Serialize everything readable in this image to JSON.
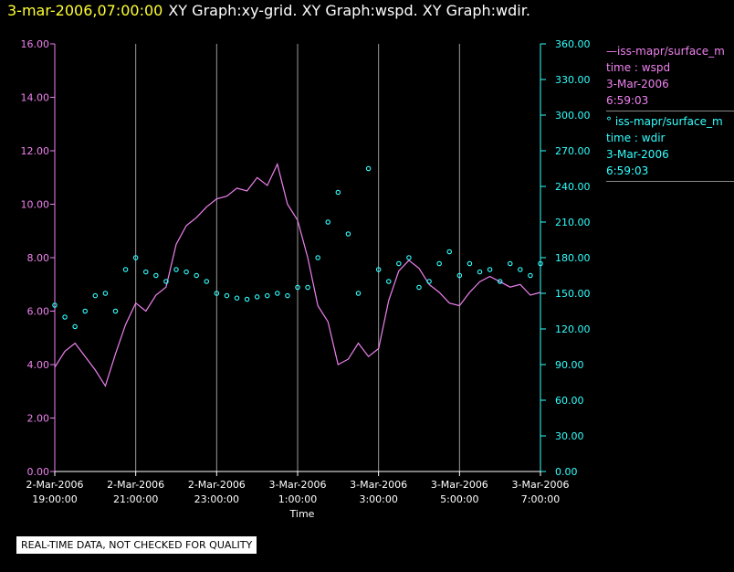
{
  "header": {
    "timestamp": "3-mar-2006,07:00:00",
    "title": "XY Graph:xy-grid.  XY Graph:wspd.  XY Graph:wdir."
  },
  "legend": [
    {
      "marker": "—",
      "name": "iss-mapr/surface_m",
      "var": "time : wspd",
      "date": "3-Mar-2006",
      "time": "6:59:03",
      "color": "#ee82ee"
    },
    {
      "marker": "°",
      "name": "iss-mapr/surface_m",
      "var": "time : wdir",
      "date": "3-Mar-2006",
      "time": "6:59:03",
      "color": "#33ffff"
    }
  ],
  "notice": "REAL-TIME DATA, NOT CHECKED FOR QUALITY",
  "chart_data": {
    "type": "line",
    "xlabel": "Time",
    "x_ticks": [
      {
        "line1": "2-Mar-2006",
        "line2": "19:00:00",
        "h": 0
      },
      {
        "line1": "2-Mar-2006",
        "line2": "21:00:00",
        "h": 2
      },
      {
        "line1": "2-Mar-2006",
        "line2": "23:00:00",
        "h": 4
      },
      {
        "line1": "3-Mar-2006",
        "line2": "1:00:00",
        "h": 6
      },
      {
        "line1": "3-Mar-2006",
        "line2": "3:00:00",
        "h": 8
      },
      {
        "line1": "3-Mar-2006",
        "line2": "5:00:00",
        "h": 10
      },
      {
        "line1": "3-Mar-2006",
        "line2": "7:00:00",
        "h": 12
      }
    ],
    "y_left": {
      "ticks": [
        "0.00",
        "2.00",
        "4.00",
        "6.00",
        "8.00",
        "10.00",
        "12.00",
        "14.00",
        "16.00"
      ],
      "lim": [
        0,
        16
      ],
      "color": "#ee82ee"
    },
    "y_right": {
      "ticks": [
        "0.00",
        "30.00",
        "60.00",
        "90.00",
        "120.00",
        "150.00",
        "180.00",
        "210.00",
        "240.00",
        "270.00",
        "300.00",
        "330.00",
        "360.00"
      ],
      "lim": [
        0,
        360
      ],
      "color": "#33ffff"
    },
    "grid": "vertical",
    "series": [
      {
        "name": "iss-mapr/surface_m time : wspd",
        "kind": "line",
        "axis": "left",
        "color": "#ee82ee",
        "points": [
          [
            0,
            3.9
          ],
          [
            0.25,
            4.5
          ],
          [
            0.5,
            4.8
          ],
          [
            0.75,
            4.3
          ],
          [
            1.0,
            3.8
          ],
          [
            1.25,
            3.2
          ],
          [
            1.5,
            4.4
          ],
          [
            1.75,
            5.5
          ],
          [
            2.0,
            6.3
          ],
          [
            2.25,
            6.0
          ],
          [
            2.5,
            6.6
          ],
          [
            2.75,
            6.9
          ],
          [
            3.0,
            8.5
          ],
          [
            3.25,
            9.2
          ],
          [
            3.5,
            9.5
          ],
          [
            3.75,
            9.9
          ],
          [
            4.0,
            10.2
          ],
          [
            4.25,
            10.3
          ],
          [
            4.5,
            10.6
          ],
          [
            4.75,
            10.5
          ],
          [
            5.0,
            11.0
          ],
          [
            5.25,
            10.7
          ],
          [
            5.5,
            11.5
          ],
          [
            5.75,
            10.0
          ],
          [
            6.0,
            9.4
          ],
          [
            6.25,
            8.0
          ],
          [
            6.5,
            6.2
          ],
          [
            6.75,
            5.6
          ],
          [
            7.0,
            4.0
          ],
          [
            7.25,
            4.2
          ],
          [
            7.5,
            4.8
          ],
          [
            7.75,
            4.3
          ],
          [
            8.0,
            4.6
          ],
          [
            8.25,
            6.4
          ],
          [
            8.5,
            7.5
          ],
          [
            8.75,
            7.9
          ],
          [
            9.0,
            7.6
          ],
          [
            9.25,
            7.0
          ],
          [
            9.5,
            6.7
          ],
          [
            9.75,
            6.3
          ],
          [
            10.0,
            6.2
          ],
          [
            10.25,
            6.7
          ],
          [
            10.5,
            7.1
          ],
          [
            10.75,
            7.3
          ],
          [
            11.0,
            7.1
          ],
          [
            11.25,
            6.9
          ],
          [
            11.5,
            7.0
          ],
          [
            11.75,
            6.6
          ],
          [
            12.0,
            6.7
          ]
        ]
      },
      {
        "name": "iss-mapr/surface_m time : wdir",
        "kind": "scatter",
        "axis": "right",
        "color": "#33ffff",
        "points": [
          [
            0,
            140
          ],
          [
            0.25,
            130
          ],
          [
            0.5,
            122
          ],
          [
            0.75,
            135
          ],
          [
            1.0,
            148
          ],
          [
            1.25,
            150
          ],
          [
            1.5,
            135
          ],
          [
            1.75,
            170
          ],
          [
            2.0,
            180
          ],
          [
            2.25,
            168
          ],
          [
            2.5,
            165
          ],
          [
            2.75,
            160
          ],
          [
            3.0,
            170
          ],
          [
            3.25,
            168
          ],
          [
            3.5,
            165
          ],
          [
            3.75,
            160
          ],
          [
            4.0,
            150
          ],
          [
            4.25,
            148
          ],
          [
            4.5,
            146
          ],
          [
            4.75,
            145
          ],
          [
            5.0,
            147
          ],
          [
            5.25,
            148
          ],
          [
            5.5,
            150
          ],
          [
            5.75,
            148
          ],
          [
            6.0,
            155
          ],
          [
            6.25,
            155
          ],
          [
            6.5,
            180
          ],
          [
            6.75,
            210
          ],
          [
            7.0,
            235
          ],
          [
            7.25,
            200
          ],
          [
            7.5,
            150
          ],
          [
            7.75,
            255
          ],
          [
            8.0,
            170
          ],
          [
            8.25,
            160
          ],
          [
            8.5,
            175
          ],
          [
            8.75,
            180
          ],
          [
            9.0,
            155
          ],
          [
            9.25,
            160
          ],
          [
            9.5,
            175
          ],
          [
            9.75,
            185
          ],
          [
            10.0,
            165
          ],
          [
            10.25,
            175
          ],
          [
            10.5,
            168
          ],
          [
            10.75,
            170
          ],
          [
            11.0,
            160
          ],
          [
            11.25,
            175
          ],
          [
            11.5,
            170
          ],
          [
            11.75,
            165
          ],
          [
            12.0,
            175
          ]
        ]
      }
    ]
  }
}
